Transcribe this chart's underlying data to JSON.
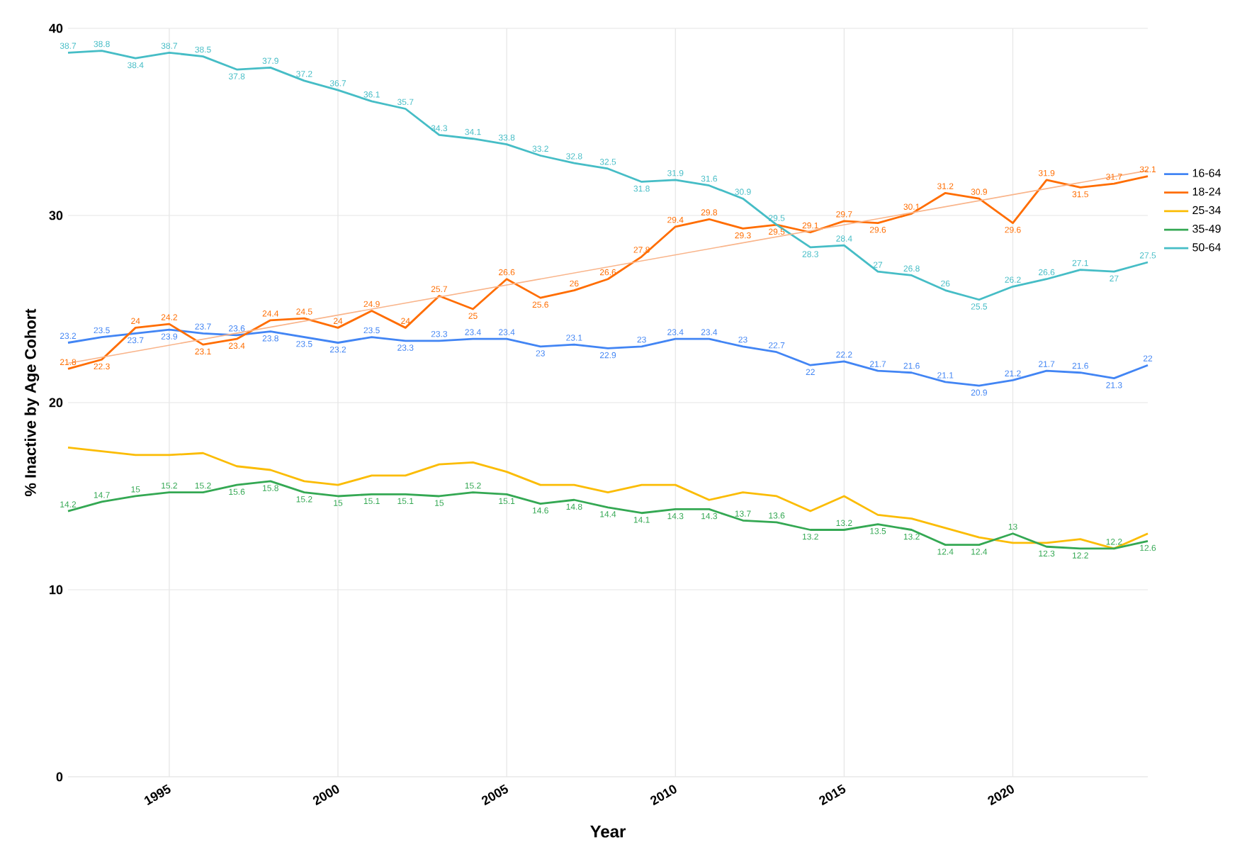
{
  "chart_data": {
    "type": "line",
    "xlabel": "Year",
    "ylabel": "% Inactive by Age Cohort",
    "x": [
      1992,
      1993,
      1994,
      1995,
      1996,
      1997,
      1998,
      1999,
      2000,
      2001,
      2002,
      2003,
      2004,
      2005,
      2006,
      2007,
      2008,
      2009,
      2010,
      2011,
      2012,
      2013,
      2014,
      2015,
      2016,
      2017,
      2018,
      2019,
      2020,
      2021,
      2022,
      2023,
      2024
    ],
    "xlim": [
      1992,
      2024
    ],
    "xticks": [
      1995,
      2000,
      2005,
      2010,
      2015,
      2020
    ],
    "ylim": [
      0,
      40
    ],
    "yticks": [
      0,
      10,
      20,
      30,
      40
    ],
    "grid": true,
    "legend": "right",
    "marker": "none",
    "series": [
      {
        "name": "16-64",
        "color": "#4285f4",
        "values": [
          23.2,
          23.5,
          23.7,
          23.9,
          23.7,
          23.6,
          23.8,
          23.5,
          23.2,
          23.5,
          23.3,
          23.3,
          23.4,
          23.4,
          23,
          23.1,
          22.9,
          23,
          23.4,
          23.4,
          23,
          22.7,
          22,
          22.2,
          21.7,
          21.6,
          21.1,
          20.9,
          21.2,
          21.7,
          21.6,
          21.3,
          22
        ],
        "value_labels": [
          "23.2",
          "23.5",
          "23.7",
          "23.9",
          "23.7",
          "23.6",
          "23.8",
          "23.5",
          "23.2",
          "23.5",
          "23.3",
          "23.3",
          "23.4",
          "23.4",
          "23",
          "23.1",
          "22.9",
          "23",
          "23.4",
          "23.4",
          "23",
          "22.7",
          "22",
          "22.2",
          "21.7",
          "21.6",
          "21.1",
          "20.9",
          "21.2",
          "21.7",
          "21.6",
          "21.3",
          "22"
        ]
      },
      {
        "name": "18-24",
        "color": "#ff6d01",
        "values": [
          21.8,
          22.3,
          24,
          24.2,
          23.1,
          23.4,
          24.4,
          24.5,
          24,
          24.9,
          24,
          25.7,
          25,
          26.6,
          25.6,
          26,
          26.6,
          27.8,
          29.4,
          29.8,
          29.3,
          29.5,
          29.1,
          29.7,
          29.6,
          30.1,
          31.2,
          30.9,
          29.6,
          31.9,
          31.5,
          31.7,
          32.1
        ],
        "value_labels": [
          "21.8",
          "22.3",
          "24",
          "24.2",
          "23.1",
          "23.4",
          "24.4",
          "24.5",
          "24",
          "24.9",
          "24",
          "25.7",
          "25",
          "26.6",
          "25.6",
          "26",
          "26.6",
          "27.8",
          "29.4",
          "29.8",
          "29.3",
          "29.5",
          "29.1",
          "29.7",
          "29.6",
          "30.1",
          "31.2",
          "30.9",
          "29.6",
          "31.9",
          "31.5",
          "31.7",
          "32.1"
        ]
      },
      {
        "name": "25-34",
        "color": "#fbbc04",
        "values": [
          17.6,
          17.4,
          17.2,
          17.2,
          17.3,
          16.6,
          16.4,
          15.8,
          15.6,
          16.1,
          16.1,
          16.7,
          16.8,
          16.3,
          15.6,
          15.6,
          15.2,
          15.6,
          15.6,
          14.8,
          15.2,
          15,
          14.2,
          15,
          14,
          13.8,
          13.3,
          12.8,
          12.5,
          12.5,
          12.7,
          12.2,
          13
        ]
      },
      {
        "name": "35-49",
        "color": "#34a853",
        "values": [
          14.2,
          14.7,
          15,
          15.2,
          15.2,
          15.6,
          15.8,
          15.2,
          15,
          15.1,
          15.1,
          15,
          15.2,
          15.1,
          14.6,
          14.8,
          14.4,
          14.1,
          14.3,
          14.3,
          13.7,
          13.6,
          13.2,
          13.2,
          13.5,
          13.2,
          12.4,
          12.4,
          13,
          12.3,
          12.2,
          12.2,
          12.6
        ],
        "value_labels": [
          "14.2",
          "14.7",
          "15",
          "15.2",
          "15.2",
          "15.6",
          "15.8",
          "15.2",
          "15",
          "15.1",
          "15.1",
          "15",
          "15.2",
          "15.1",
          "14.6",
          "14.8",
          "14.4",
          "14.1",
          "14.3",
          "14.3",
          "13.7",
          "13.6",
          "13.2",
          "13.2",
          "13.5",
          "13.2",
          "12.4",
          "12.4",
          "13",
          "12.3",
          "12.2",
          "12.2",
          "12.6"
        ]
      },
      {
        "name": "50-64",
        "color": "#46bdc6",
        "values": [
          38.7,
          38.8,
          38.4,
          38.7,
          38.5,
          37.8,
          37.9,
          37.2,
          36.7,
          36.1,
          35.7,
          34.3,
          34.1,
          33.8,
          33.2,
          32.8,
          32.5,
          31.8,
          31.9,
          31.6,
          30.9,
          29.5,
          28.3,
          28.4,
          27,
          26.8,
          26,
          25.5,
          26.2,
          26.6,
          27.1,
          27,
          27.5
        ],
        "value_labels": [
          "38.7",
          "38.8",
          "38.4",
          "38.7",
          "38.5",
          "37.8",
          "37.9",
          "37.2",
          "36.7",
          "36.1",
          "35.7",
          "34.3",
          "34.1",
          "33.8",
          "33.2",
          "32.8",
          "32.5",
          "31.8",
          "31.9",
          "31.6",
          "30.9",
          "29.5",
          "28.3",
          "28.4",
          "27",
          "26.8",
          "26",
          "25.5",
          "26.2",
          "26.6",
          "27.1",
          "27",
          "27.5"
        ]
      },
      {
        "type": "line",
        "color": "#f9b48a",
        "x": [
          1992,
          2024
        ],
        "values": [
          22.1,
          32.4
        ]
      }
    ]
  }
}
